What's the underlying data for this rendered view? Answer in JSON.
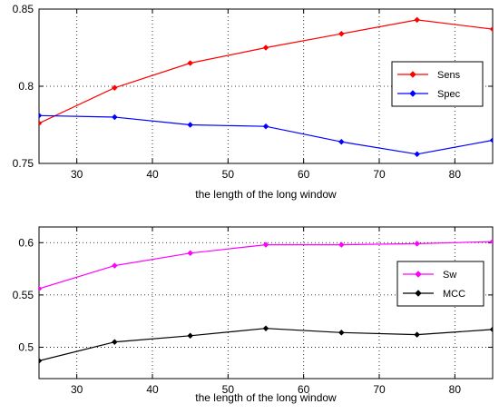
{
  "chart_data": [
    {
      "type": "line",
      "x": [
        25,
        35,
        45,
        55,
        65,
        75,
        85
      ],
      "xlim": [
        25,
        85
      ],
      "ylim": [
        0.75,
        0.85
      ],
      "xticks": [
        30,
        40,
        50,
        60,
        70,
        80
      ],
      "yticks": [
        0.75,
        0.8,
        0.85
      ],
      "xtick_labels": [
        "30",
        "40",
        "50",
        "60",
        "70",
        "80"
      ],
      "ytick_labels": [
        "0.75",
        "0.8",
        "0.85"
      ],
      "xlabel": "the length of the long window",
      "ylabel": "",
      "grid": true,
      "legend_position": "right",
      "series": [
        {
          "name": "Sens",
          "color": "#ff0000",
          "values": [
            0.776,
            0.799,
            0.815,
            0.825,
            0.834,
            0.843,
            0.837
          ]
        },
        {
          "name": "Spec",
          "color": "#0000ff",
          "values": [
            0.781,
            0.78,
            0.775,
            0.774,
            0.764,
            0.756,
            0.765
          ]
        }
      ]
    },
    {
      "type": "line",
      "x": [
        25,
        35,
        45,
        55,
        65,
        75,
        85
      ],
      "xlim": [
        25,
        85
      ],
      "ylim": [
        0.47,
        0.615
      ],
      "xticks": [
        30,
        40,
        50,
        60,
        70,
        80
      ],
      "yticks": [
        0.5,
        0.55,
        0.6
      ],
      "xtick_labels": [
        "30",
        "40",
        "50",
        "60",
        "70",
        "80"
      ],
      "ytick_labels": [
        "0.5",
        "0.55",
        "0.6"
      ],
      "xlabel": "the length of the long window",
      "ylabel": "",
      "grid": true,
      "legend_position": "right",
      "series": [
        {
          "name": "Sw",
          "color": "#ff00ff",
          "values": [
            0.556,
            0.578,
            0.59,
            0.598,
            0.598,
            0.599,
            0.601
          ]
        },
        {
          "name": "MCC",
          "color": "#000000",
          "values": [
            0.487,
            0.505,
            0.511,
            0.518,
            0.514,
            0.512,
            0.517
          ]
        }
      ]
    }
  ]
}
